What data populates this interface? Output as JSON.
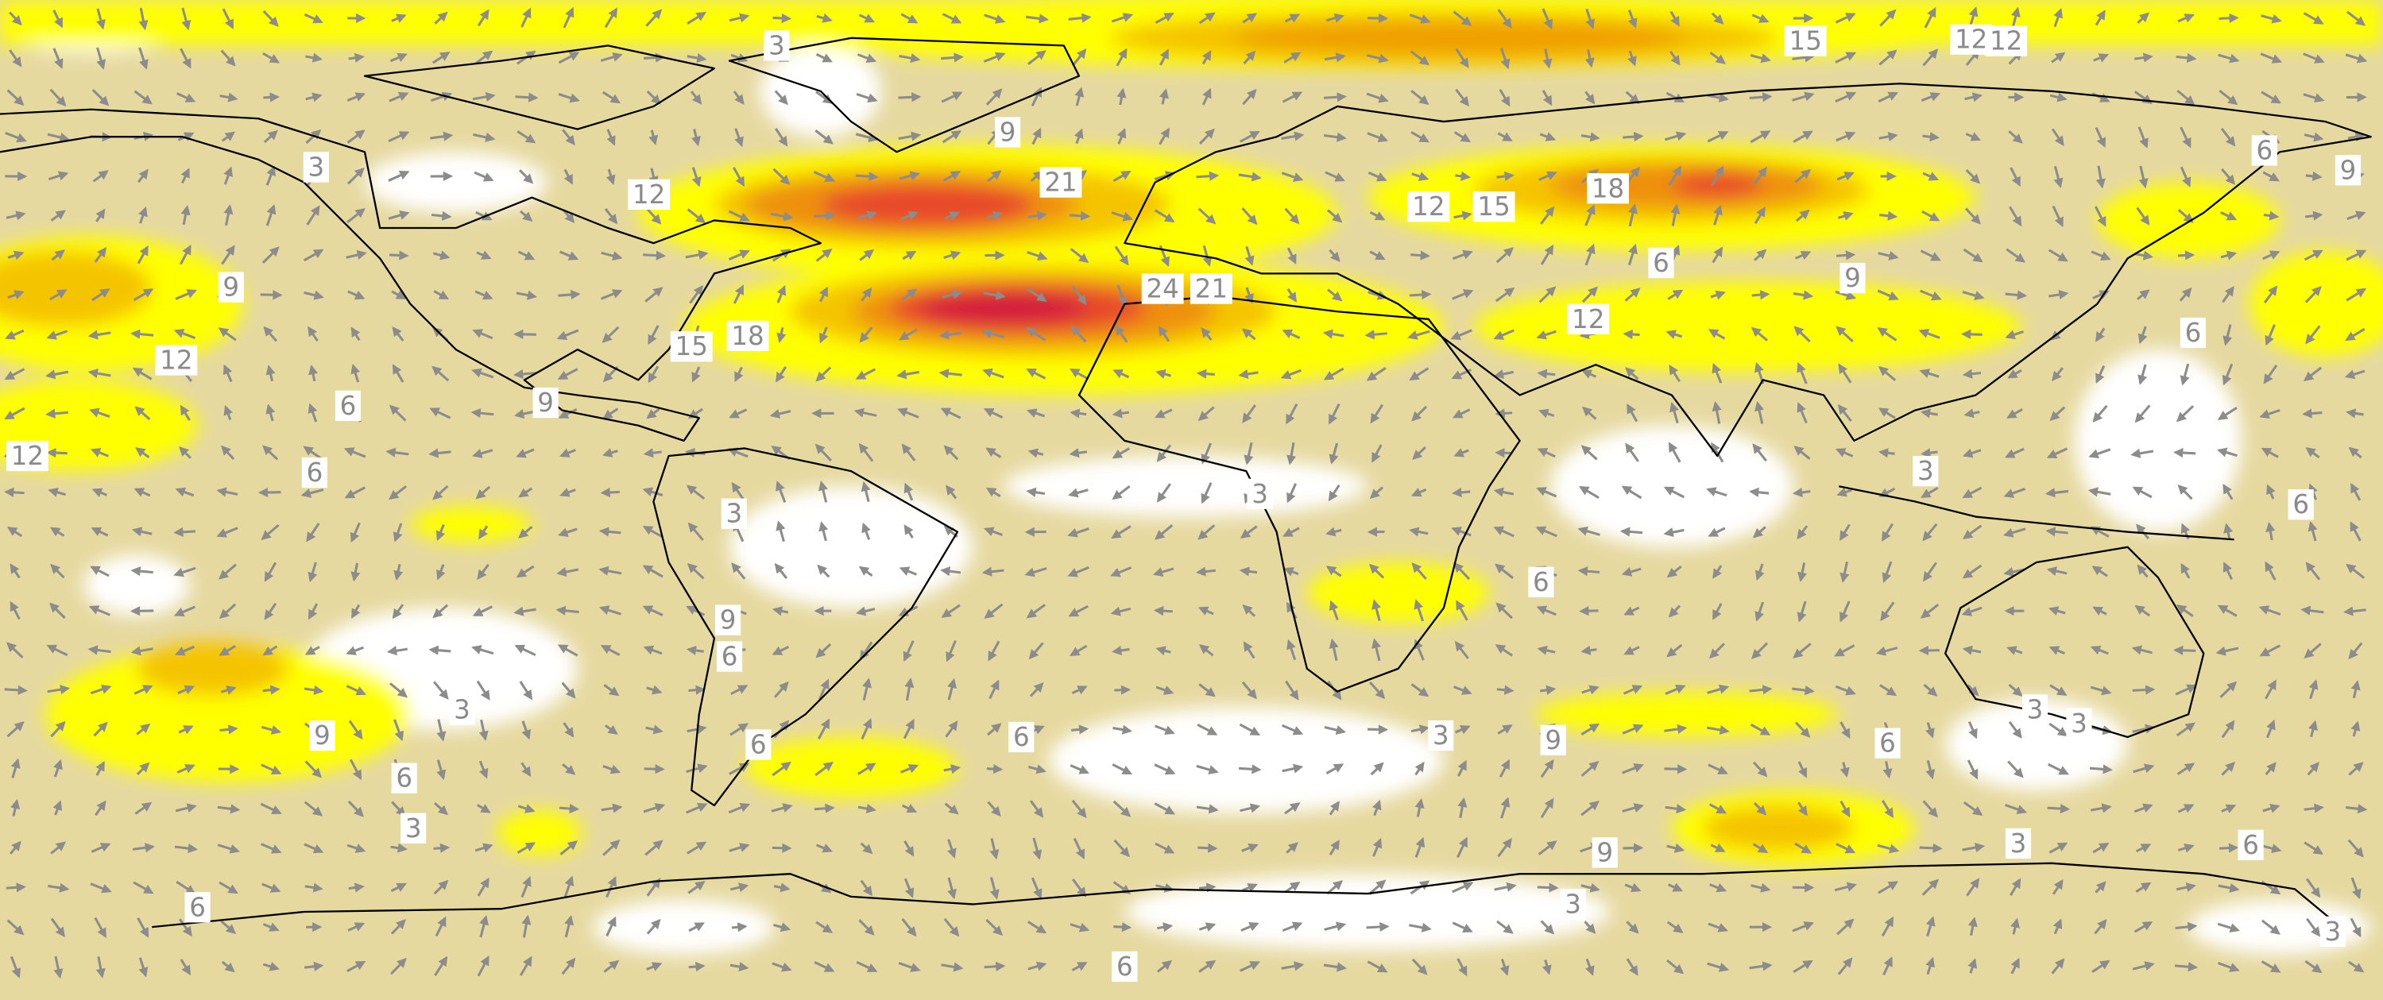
{
  "map": {
    "contour_labels": [
      3,
      15,
      12,
      12,
      9,
      3,
      12,
      21,
      12,
      15,
      18,
      6,
      9,
      9,
      12,
      6,
      9,
      15,
      18,
      24,
      21,
      6,
      9,
      12,
      6,
      12,
      6,
      3,
      3,
      6,
      3,
      6,
      9,
      6,
      3,
      9,
      6,
      3,
      6,
      6,
      3,
      9,
      6,
      3,
      3,
      3,
      6,
      9,
      6,
      3,
      6,
      3
    ]
  }
}
